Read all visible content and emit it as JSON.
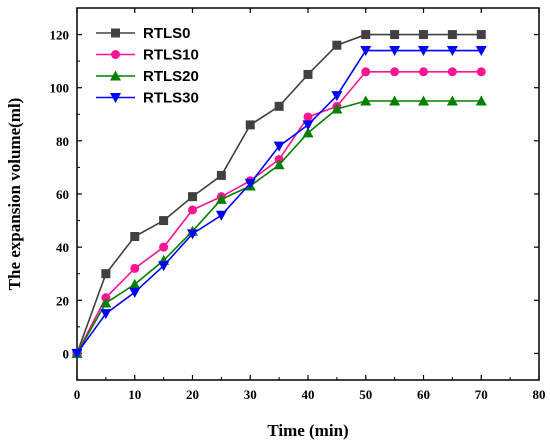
{
  "chart_data": {
    "type": "line",
    "xlabel": "Time (min)",
    "ylabel": "The expansion volume(ml)",
    "xlim": [
      0,
      80
    ],
    "ylim": [
      -10,
      130
    ],
    "xticks": [
      0,
      10,
      20,
      30,
      40,
      50,
      60,
      70,
      80
    ],
    "yticks": [
      0,
      20,
      40,
      60,
      80,
      100,
      120
    ],
    "grid": false,
    "legend_position": "top-left",
    "x": [
      0,
      5,
      10,
      15,
      20,
      25,
      30,
      35,
      40,
      45,
      50,
      55,
      60,
      65,
      70
    ],
    "series": [
      {
        "name": "RTLS0",
        "color": "#404040",
        "marker": "square",
        "values": [
          0,
          30,
          44,
          50,
          59,
          67,
          86,
          93,
          105,
          116,
          120,
          120,
          120,
          120,
          120
        ]
      },
      {
        "name": "RTLS10",
        "color": "#ff1493",
        "marker": "circle",
        "values": [
          0,
          21,
          32,
          40,
          54,
          59,
          65,
          73,
          89,
          93,
          106,
          106,
          106,
          106,
          106
        ]
      },
      {
        "name": "RTLS20",
        "color": "#008000",
        "marker": "triangle-up",
        "values": [
          0,
          19,
          26,
          35,
          46,
          58,
          63,
          71,
          83,
          92,
          95,
          95,
          95,
          95,
          95
        ]
      },
      {
        "name": "RTLS30",
        "color": "#0000ff",
        "marker": "triangle-down",
        "values": [
          0,
          15,
          23,
          33,
          45,
          52,
          64,
          78,
          86,
          97,
          114,
          114,
          114,
          114,
          114
        ]
      }
    ]
  }
}
